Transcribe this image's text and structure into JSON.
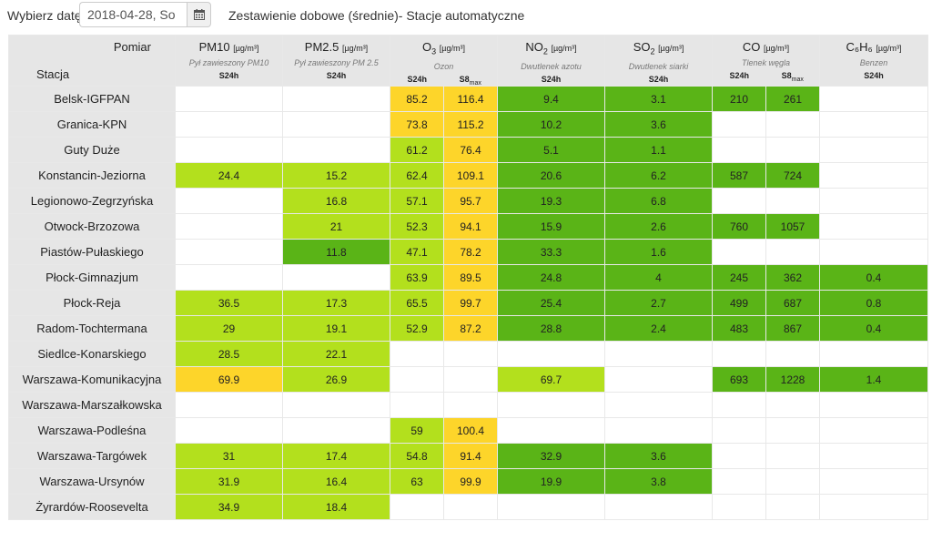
{
  "topbar": {
    "date_label": "Wybierz datę:",
    "date_value": "2018-04-28, So",
    "title": "Zestawienie dobowe (średnie)- Stacje automatyczne"
  },
  "table": {
    "corner": {
      "pomiar": "Pomiar",
      "stacja": "Stacja"
    },
    "unit": "[µg/m³]",
    "params": [
      {
        "name": "PM10",
        "desc": "Pył zawieszony PM10",
        "subs": [
          "S24h"
        ]
      },
      {
        "name": "PM2.5",
        "desc": "Pył zawieszony PM 2.5",
        "subs": [
          "S24h"
        ]
      },
      {
        "name": "O",
        "sub": "3",
        "desc": "Ozon",
        "subs": [
          "S24h",
          "S8max"
        ]
      },
      {
        "name": "NO",
        "sub": "2",
        "desc": "Dwutlenek azotu",
        "subs": [
          "S24h"
        ]
      },
      {
        "name": "SO",
        "sub": "2",
        "desc": "Dwutlenek siarki",
        "subs": [
          "S24h"
        ]
      },
      {
        "name": "CO",
        "desc": "Tlenek węgla",
        "subs": [
          "S24h",
          "S8max"
        ]
      },
      {
        "name": "C₆H₆",
        "desc": "Benzen",
        "subs": [
          "S24h"
        ]
      }
    ],
    "colors": {
      "y": "#fdd52a",
      "l": "#b3e01d",
      "g": "#5ab417"
    },
    "rows": [
      {
        "station": "Belsk-IGFPAN",
        "cells": [
          [
            "",
            ""
          ],
          [
            "",
            ""
          ],
          [
            "85.2",
            "y"
          ],
          [
            "116.4",
            "y"
          ],
          [
            "9.4",
            "g"
          ],
          [
            "3.1",
            "g"
          ],
          [
            "210",
            "g"
          ],
          [
            "261",
            "g"
          ],
          [
            "",
            ""
          ]
        ]
      },
      {
        "station": "Granica-KPN",
        "cells": [
          [
            "",
            ""
          ],
          [
            "",
            ""
          ],
          [
            "73.8",
            "y"
          ],
          [
            "115.2",
            "y"
          ],
          [
            "10.2",
            "g"
          ],
          [
            "3.6",
            "g"
          ],
          [
            "",
            ""
          ],
          [
            "",
            ""
          ],
          [
            "",
            ""
          ]
        ]
      },
      {
        "station": "Guty Duże",
        "cells": [
          [
            "",
            ""
          ],
          [
            "",
            ""
          ],
          [
            "61.2",
            "l"
          ],
          [
            "76.4",
            "y"
          ],
          [
            "5.1",
            "g"
          ],
          [
            "1.1",
            "g"
          ],
          [
            "",
            ""
          ],
          [
            "",
            ""
          ],
          [
            "",
            ""
          ]
        ]
      },
      {
        "station": "Konstancin-Jeziorna",
        "cells": [
          [
            "24.4",
            "l"
          ],
          [
            "15.2",
            "l"
          ],
          [
            "62.4",
            "l"
          ],
          [
            "109.1",
            "y"
          ],
          [
            "20.6",
            "g"
          ],
          [
            "6.2",
            "g"
          ],
          [
            "587",
            "g"
          ],
          [
            "724",
            "g"
          ],
          [
            "",
            ""
          ]
        ]
      },
      {
        "station": "Legionowo-Zegrzyńska",
        "cells": [
          [
            "",
            ""
          ],
          [
            "16.8",
            "l"
          ],
          [
            "57.1",
            "l"
          ],
          [
            "95.7",
            "y"
          ],
          [
            "19.3",
            "g"
          ],
          [
            "6.8",
            "g"
          ],
          [
            "",
            ""
          ],
          [
            "",
            ""
          ],
          [
            "",
            ""
          ]
        ]
      },
      {
        "station": "Otwock-Brzozowa",
        "cells": [
          [
            "",
            ""
          ],
          [
            "21",
            "l"
          ],
          [
            "52.3",
            "l"
          ],
          [
            "94.1",
            "y"
          ],
          [
            "15.9",
            "g"
          ],
          [
            "2.6",
            "g"
          ],
          [
            "760",
            "g"
          ],
          [
            "1057",
            "g"
          ],
          [
            "",
            ""
          ]
        ]
      },
      {
        "station": "Piastów-Pułaskiego",
        "cells": [
          [
            "",
            ""
          ],
          [
            "11.8",
            "g"
          ],
          [
            "47.1",
            "l"
          ],
          [
            "78.2",
            "y"
          ],
          [
            "33.3",
            "g"
          ],
          [
            "1.6",
            "g"
          ],
          [
            "",
            ""
          ],
          [
            "",
            ""
          ],
          [
            "",
            ""
          ]
        ]
      },
      {
        "station": "Płock-Gimnazjum",
        "cells": [
          [
            "",
            ""
          ],
          [
            "",
            ""
          ],
          [
            "63.9",
            "l"
          ],
          [
            "89.5",
            "y"
          ],
          [
            "24.8",
            "g"
          ],
          [
            "4",
            "g"
          ],
          [
            "245",
            "g"
          ],
          [
            "362",
            "g"
          ],
          [
            "0.4",
            "g"
          ]
        ]
      },
      {
        "station": "Płock-Reja",
        "cells": [
          [
            "36.5",
            "l"
          ],
          [
            "17.3",
            "l"
          ],
          [
            "65.5",
            "l"
          ],
          [
            "99.7",
            "y"
          ],
          [
            "25.4",
            "g"
          ],
          [
            "2.7",
            "g"
          ],
          [
            "499",
            "g"
          ],
          [
            "687",
            "g"
          ],
          [
            "0.8",
            "g"
          ]
        ]
      },
      {
        "station": "Radom-Tochtermana",
        "cells": [
          [
            "29",
            "l"
          ],
          [
            "19.1",
            "l"
          ],
          [
            "52.9",
            "l"
          ],
          [
            "87.2",
            "y"
          ],
          [
            "28.8",
            "g"
          ],
          [
            "2.4",
            "g"
          ],
          [
            "483",
            "g"
          ],
          [
            "867",
            "g"
          ],
          [
            "0.4",
            "g"
          ]
        ]
      },
      {
        "station": "Siedlce-Konarskiego",
        "cells": [
          [
            "28.5",
            "l"
          ],
          [
            "22.1",
            "l"
          ],
          [
            "",
            ""
          ],
          [
            "",
            ""
          ],
          [
            "",
            ""
          ],
          [
            "",
            ""
          ],
          [
            "",
            ""
          ],
          [
            "",
            ""
          ],
          [
            "",
            ""
          ]
        ]
      },
      {
        "station": "Warszawa-Komunikacyjna",
        "cells": [
          [
            "69.9",
            "y"
          ],
          [
            "26.9",
            "l"
          ],
          [
            "",
            ""
          ],
          [
            "",
            ""
          ],
          [
            "69.7",
            "l"
          ],
          [
            "",
            ""
          ],
          [
            "693",
            "g"
          ],
          [
            "1228",
            "g"
          ],
          [
            "1.4",
            "g"
          ]
        ]
      },
      {
        "station": "Warszawa-Marszałkowska",
        "cells": [
          [
            "",
            ""
          ],
          [
            "",
            ""
          ],
          [
            "",
            ""
          ],
          [
            "",
            ""
          ],
          [
            "",
            ""
          ],
          [
            "",
            ""
          ],
          [
            "",
            ""
          ],
          [
            "",
            ""
          ],
          [
            "",
            ""
          ]
        ]
      },
      {
        "station": "Warszawa-Podleśna",
        "cells": [
          [
            "",
            ""
          ],
          [
            "",
            ""
          ],
          [
            "59",
            "l"
          ],
          [
            "100.4",
            "y"
          ],
          [
            "",
            ""
          ],
          [
            "",
            ""
          ],
          [
            "",
            ""
          ],
          [
            "",
            ""
          ],
          [
            "",
            ""
          ]
        ]
      },
      {
        "station": "Warszawa-Targówek",
        "cells": [
          [
            "31",
            "l"
          ],
          [
            "17.4",
            "l"
          ],
          [
            "54.8",
            "l"
          ],
          [
            "91.4",
            "y"
          ],
          [
            "32.9",
            "g"
          ],
          [
            "3.6",
            "g"
          ],
          [
            "",
            ""
          ],
          [
            "",
            ""
          ],
          [
            "",
            ""
          ]
        ]
      },
      {
        "station": "Warszawa-Ursynów",
        "cells": [
          [
            "31.9",
            "l"
          ],
          [
            "16.4",
            "l"
          ],
          [
            "63",
            "l"
          ],
          [
            "99.9",
            "y"
          ],
          [
            "19.9",
            "g"
          ],
          [
            "3.8",
            "g"
          ],
          [
            "",
            ""
          ],
          [
            "",
            ""
          ],
          [
            "",
            ""
          ]
        ]
      },
      {
        "station": "Żyrardów-Roosevelta",
        "cells": [
          [
            "34.9",
            "l"
          ],
          [
            "18.4",
            "l"
          ],
          [
            "",
            ""
          ],
          [
            "",
            ""
          ],
          [
            "",
            ""
          ],
          [
            "",
            ""
          ],
          [
            "",
            ""
          ],
          [
            "",
            ""
          ],
          [
            "",
            ""
          ]
        ]
      }
    ]
  }
}
